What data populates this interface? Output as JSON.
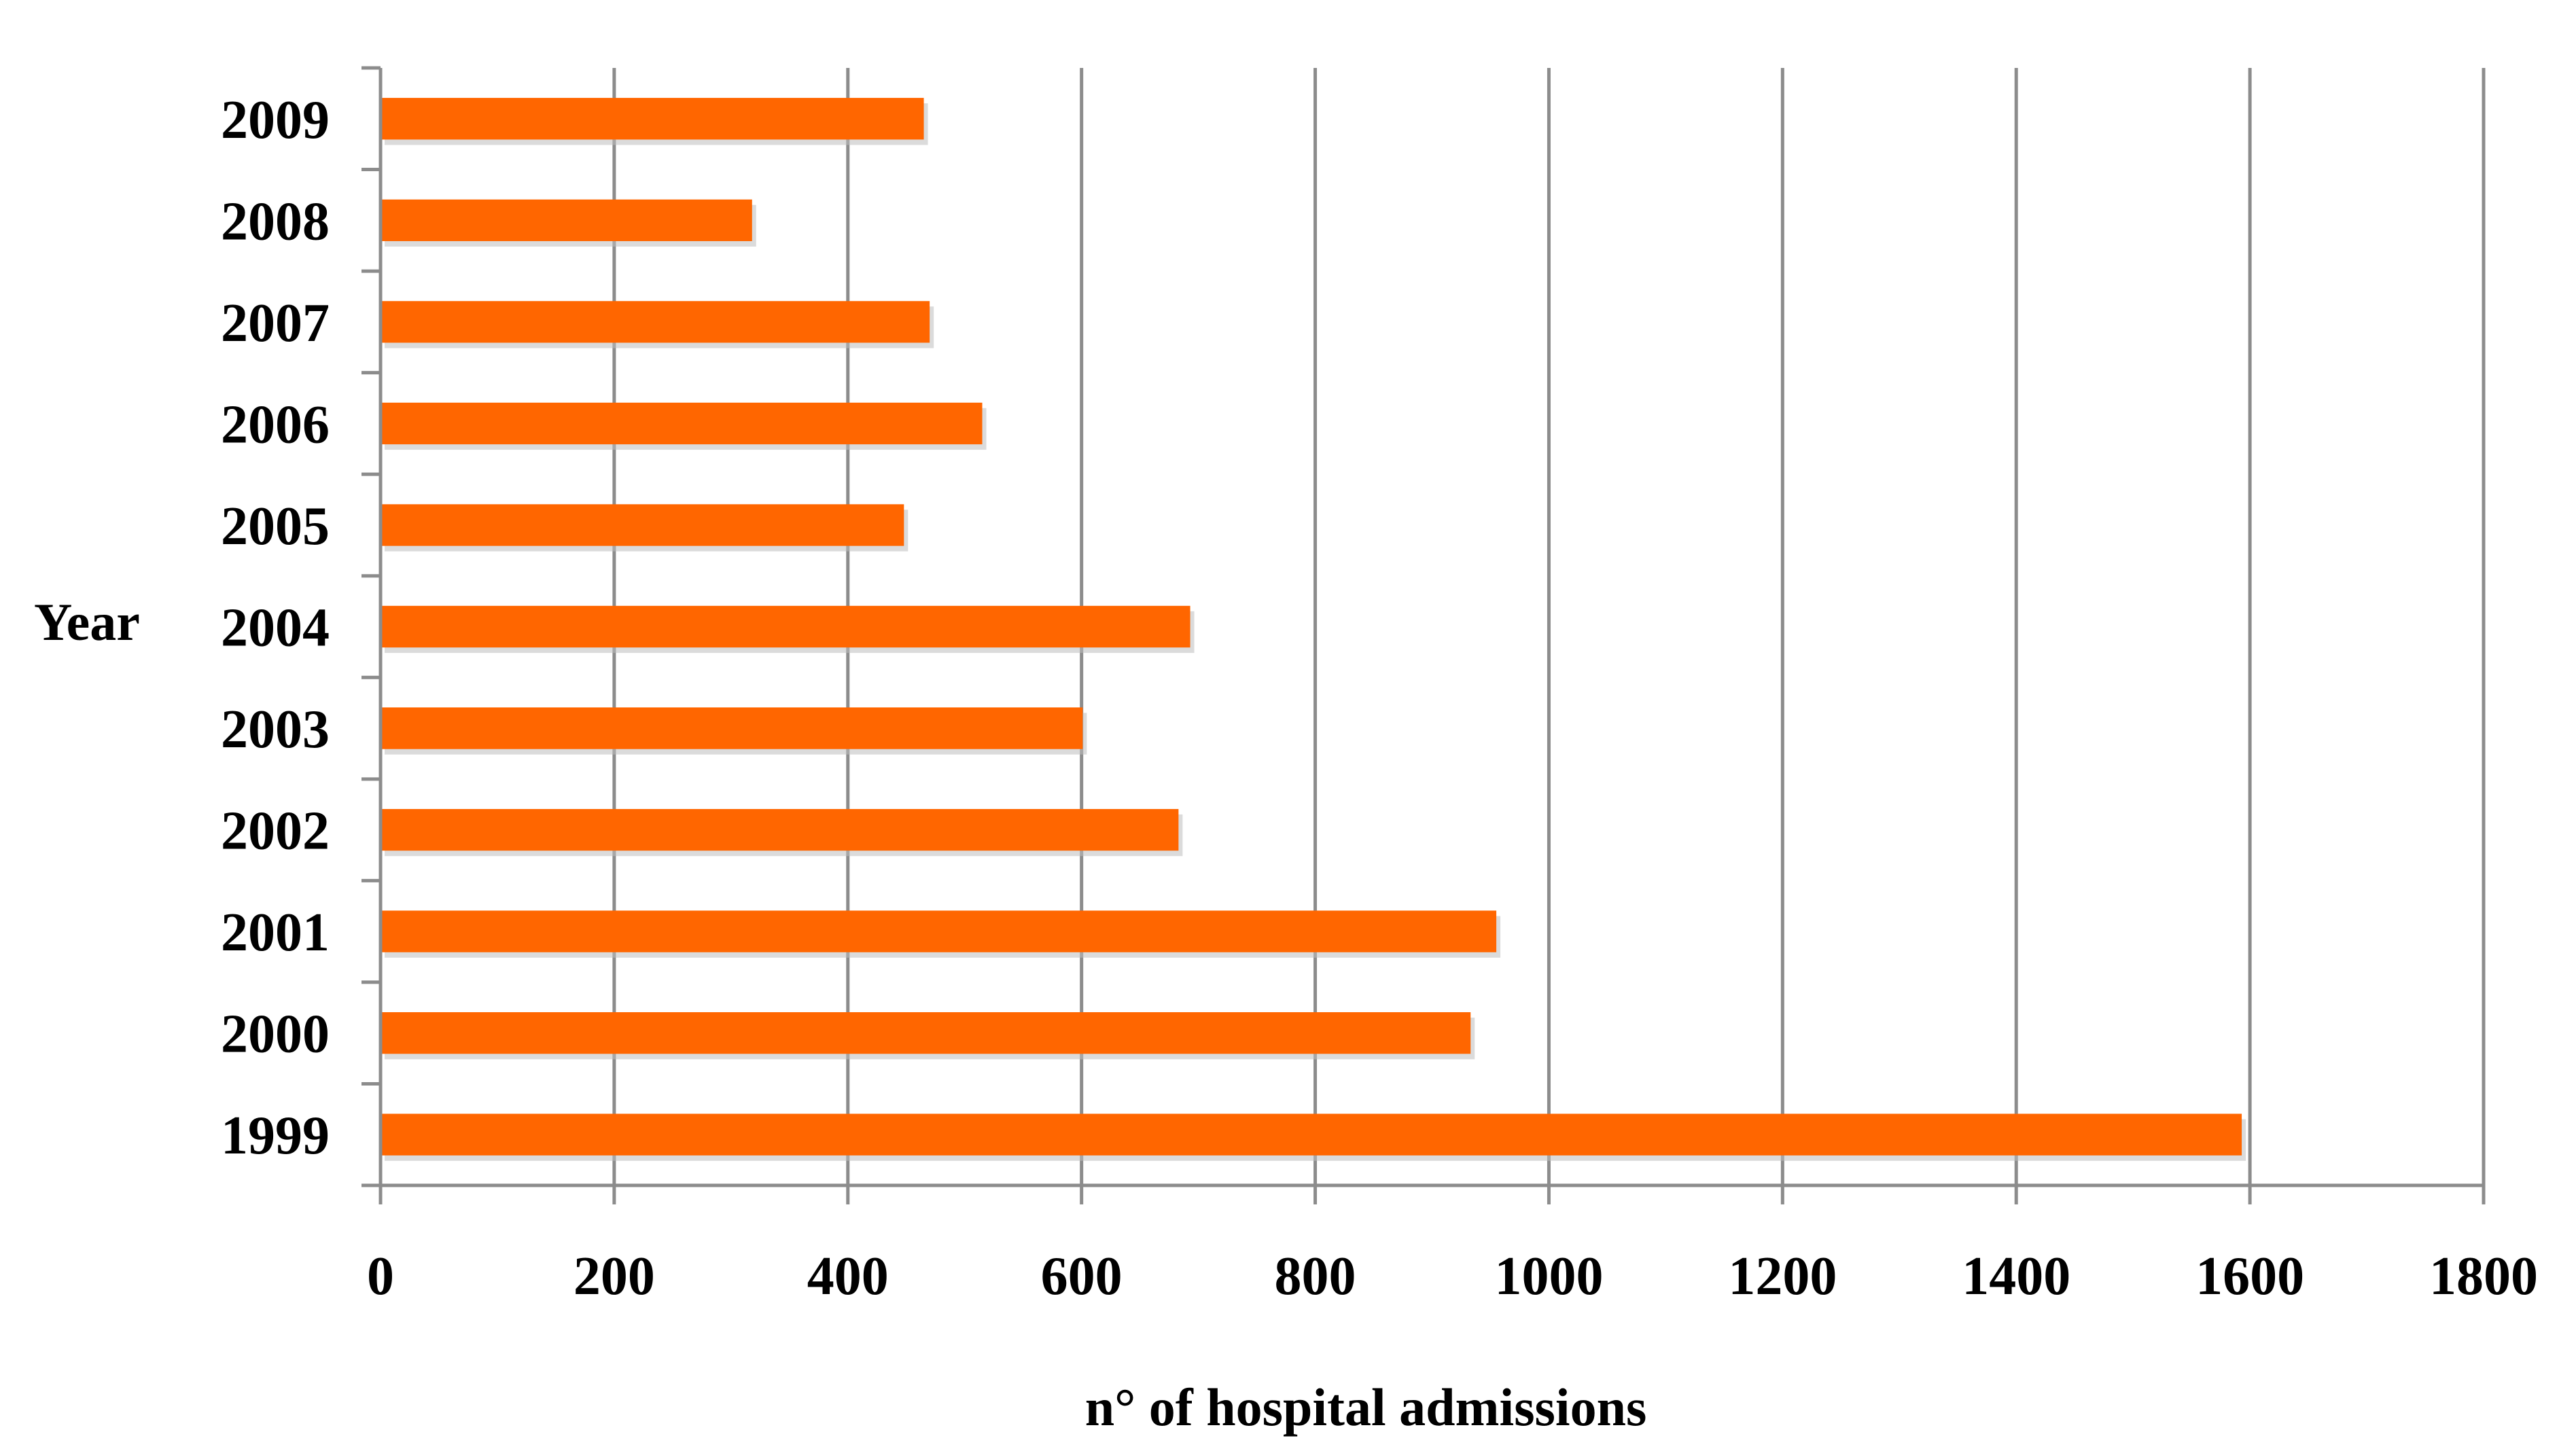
{
  "chart_data": {
    "type": "bar",
    "orientation": "horizontal",
    "categories": [
      "1999",
      "2000",
      "2001",
      "2002",
      "2003",
      "2004",
      "2005",
      "2006",
      "2007",
      "2008",
      "2009"
    ],
    "values": [
      1593,
      933,
      955,
      683,
      601,
      693,
      448,
      515,
      470,
      318,
      465
    ],
    "title": "",
    "xlabel": "n° of hospital admissions",
    "ylabel": "Year",
    "xlim": [
      0,
      1800
    ],
    "xticks": [
      "0",
      "200",
      "400",
      "600",
      "800",
      "1000",
      "1200",
      "1400",
      "1600",
      "1800"
    ],
    "grid": "vertical",
    "legend": "none",
    "bar_color": "#FF6600"
  }
}
